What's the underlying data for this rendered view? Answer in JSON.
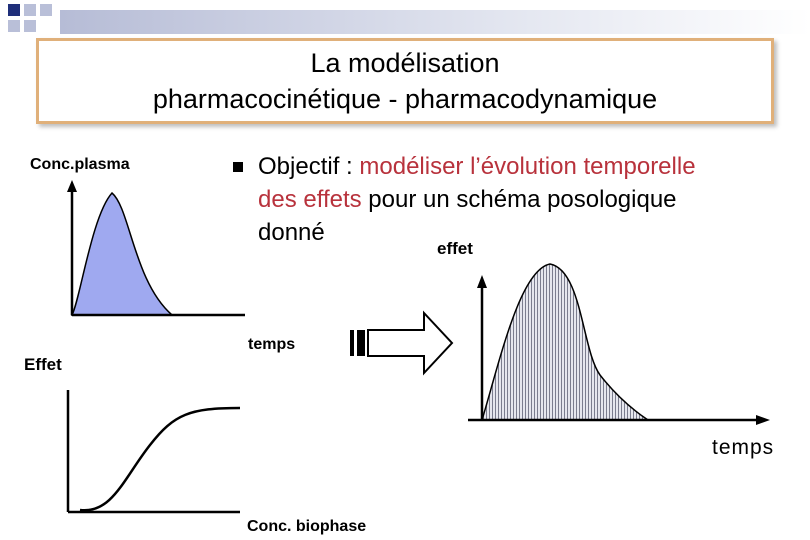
{
  "title": {
    "line1": "La modélisation",
    "line2": "pharmacocinétique - pharmacodynamique"
  },
  "bullet": {
    "prefix": "Objectif : ",
    "highlight1": "modéliser l’évolution temporelle",
    "highlight2": "des effets",
    "rest": " pour un schéma posologique",
    "line3": "donné"
  },
  "labels": {
    "conc_plasma": "Conc.plasma",
    "effet_left": "Effet",
    "temps_small": "temps",
    "effet_right": "effet",
    "temps_right": "temps",
    "conc_biophase": "Conc. biophase"
  },
  "colors": {
    "plasma_fill": "#9fa9f0",
    "hatch_fill": "#c8cad6",
    "title_border": "#e0b07a",
    "highlight_text": "#b8323c"
  },
  "icons": {
    "arrow": "right-arrow-icon"
  }
}
